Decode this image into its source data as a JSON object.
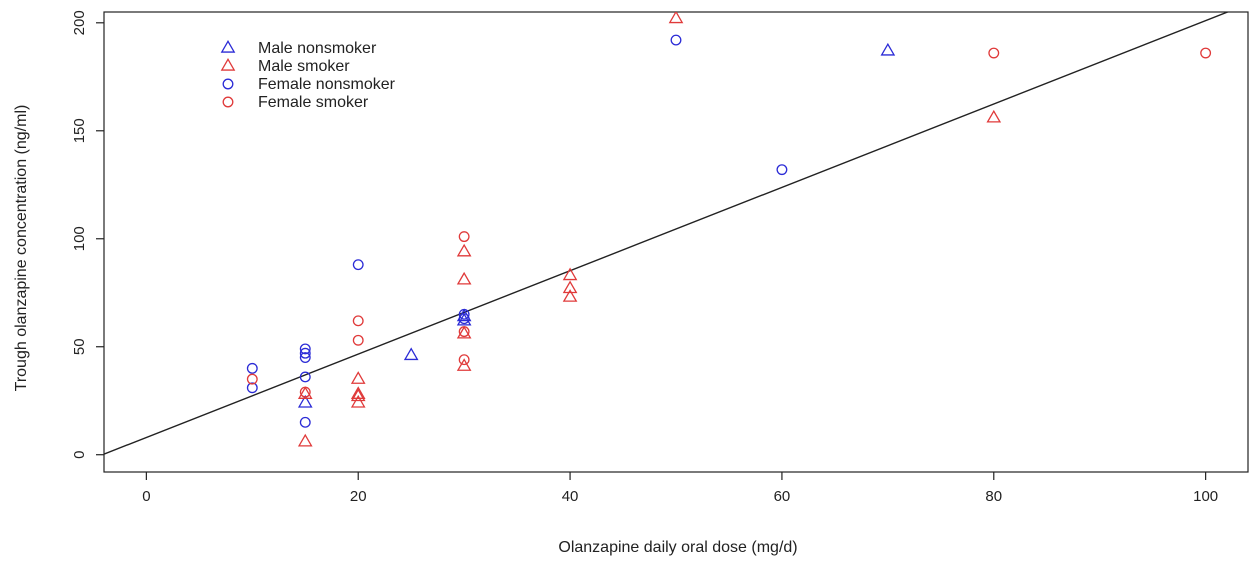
{
  "chart_data": {
    "type": "scatter",
    "title": "",
    "xlabel": "Olanzapine daily oral dose (mg/d)",
    "ylabel": "Trough olanzapine concentration (ng/ml)",
    "xlim": [
      -4,
      104
    ],
    "ylim": [
      -8,
      205
    ],
    "xticks": [
      "0",
      "20",
      "40",
      "60",
      "80",
      "100"
    ],
    "yticks": [
      "0",
      "50",
      "100",
      "150",
      "200"
    ],
    "legend_position": "top-left",
    "series": [
      {
        "name": "Male nonsmoker",
        "marker": "triangle",
        "color": "#2b2bd6",
        "points": [
          [
            15,
            24
          ],
          [
            25,
            46
          ],
          [
            30,
            62
          ],
          [
            30,
            64
          ],
          [
            70,
            187
          ]
        ]
      },
      {
        "name": "Male smoker",
        "marker": "triangle",
        "color": "#e03a3a",
        "points": [
          [
            15,
            6
          ],
          [
            15,
            28
          ],
          [
            20,
            24
          ],
          [
            20,
            27
          ],
          [
            20,
            28
          ],
          [
            20,
            35
          ],
          [
            30,
            41
          ],
          [
            30,
            56
          ],
          [
            30,
            81
          ],
          [
            30,
            94
          ],
          [
            40,
            73
          ],
          [
            40,
            77
          ],
          [
            40,
            83
          ],
          [
            50,
            202
          ],
          [
            80,
            156
          ]
        ]
      },
      {
        "name": "Female nonsmoker",
        "marker": "circle",
        "color": "#2b2bd6",
        "points": [
          [
            10,
            31
          ],
          [
            10,
            40
          ],
          [
            15,
            15
          ],
          [
            15,
            36
          ],
          [
            15,
            45
          ],
          [
            15,
            47
          ],
          [
            15,
            49
          ],
          [
            20,
            88
          ],
          [
            30,
            63
          ],
          [
            30,
            65
          ],
          [
            50,
            192
          ],
          [
            60,
            132
          ]
        ]
      },
      {
        "name": "Female smoker",
        "marker": "circle",
        "color": "#e03a3a",
        "points": [
          [
            10,
            35
          ],
          [
            15,
            29
          ],
          [
            20,
            53
          ],
          [
            20,
            62
          ],
          [
            30,
            44
          ],
          [
            30,
            57
          ],
          [
            30,
            101
          ],
          [
            80,
            186
          ],
          [
            100,
            186
          ]
        ]
      }
    ],
    "regression_line": {
      "intercept": 8,
      "slope": 1.93
    }
  }
}
